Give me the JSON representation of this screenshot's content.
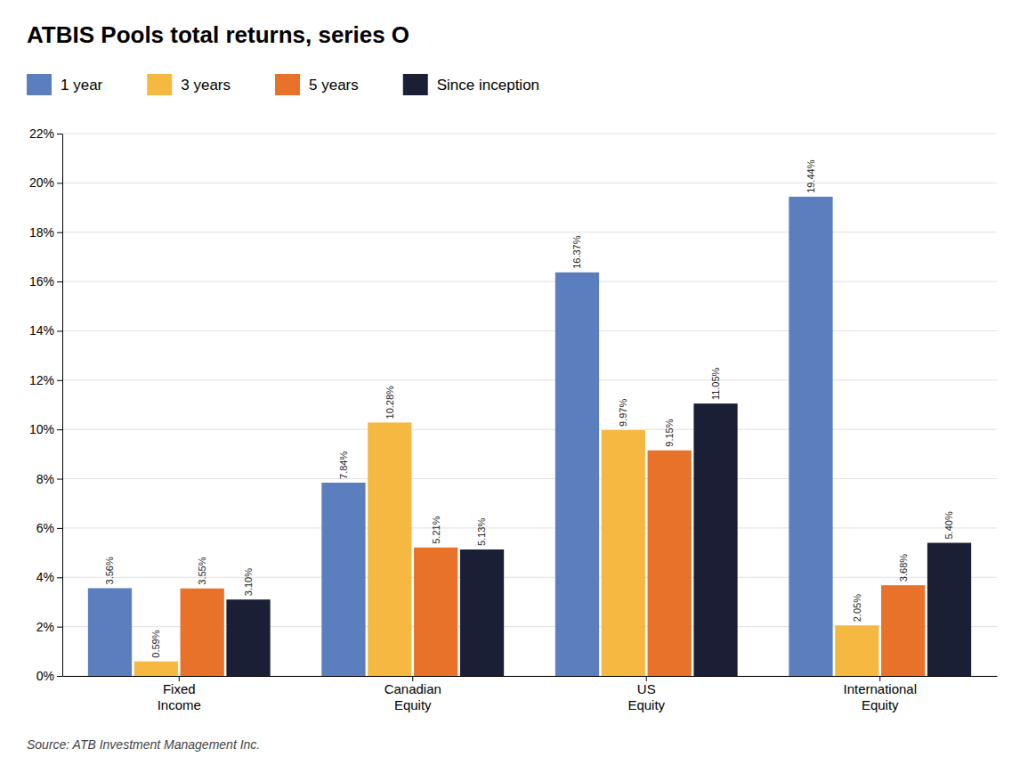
{
  "chart_data": {
    "type": "bar",
    "title": "ATBIS Pools total returns, series O",
    "categories": [
      "Fixed\nIncome",
      "Canadian\nEquity",
      "US\nEquity",
      "International\nEquity"
    ],
    "series": [
      {
        "name": "1 year",
        "color": "#5b7fbe",
        "values": [
          3.56,
          7.84,
          16.37,
          19.44
        ],
        "value_labels": [
          "3.56%",
          "7.84%",
          "16.37%",
          "19.44%"
        ]
      },
      {
        "name": "3 years",
        "color": "#f5b942",
        "values": [
          0.59,
          10.28,
          9.97,
          2.05
        ],
        "value_labels": [
          "0.59%",
          "10.28%",
          "9.97%",
          "2.05%"
        ]
      },
      {
        "name": "5 years",
        "color": "#e8722a",
        "values": [
          3.55,
          5.21,
          9.15,
          3.68
        ],
        "value_labels": [
          "3.55%",
          "5.21%",
          "9.15%",
          "3.68%"
        ]
      },
      {
        "name": "Since inception",
        "color": "#1a1f36",
        "values": [
          3.1,
          5.13,
          11.05,
          5.4
        ],
        "value_labels": [
          "3.10%",
          "5.13%",
          "11.05%",
          "5.40%"
        ]
      }
    ],
    "ylim": [
      0,
      22
    ],
    "yticks": [
      {
        "value": 0,
        "label": "0%"
      },
      {
        "value": 2,
        "label": "2%"
      },
      {
        "value": 4,
        "label": "4%"
      },
      {
        "value": 6,
        "label": "6%"
      },
      {
        "value": 8,
        "label": "8%"
      },
      {
        "value": 10,
        "label": "10%"
      },
      {
        "value": 12,
        "label": "12%"
      },
      {
        "value": 14,
        "label": "14%"
      },
      {
        "value": 16,
        "label": "16%"
      },
      {
        "value": 18,
        "label": "18%"
      },
      {
        "value": 20,
        "label": "20%"
      },
      {
        "value": 22,
        "label": "22%"
      }
    ],
    "grid": true,
    "legend": "top",
    "data_labels": true,
    "annotations": [
      "Source: ATB Investment Management Inc."
    ]
  }
}
